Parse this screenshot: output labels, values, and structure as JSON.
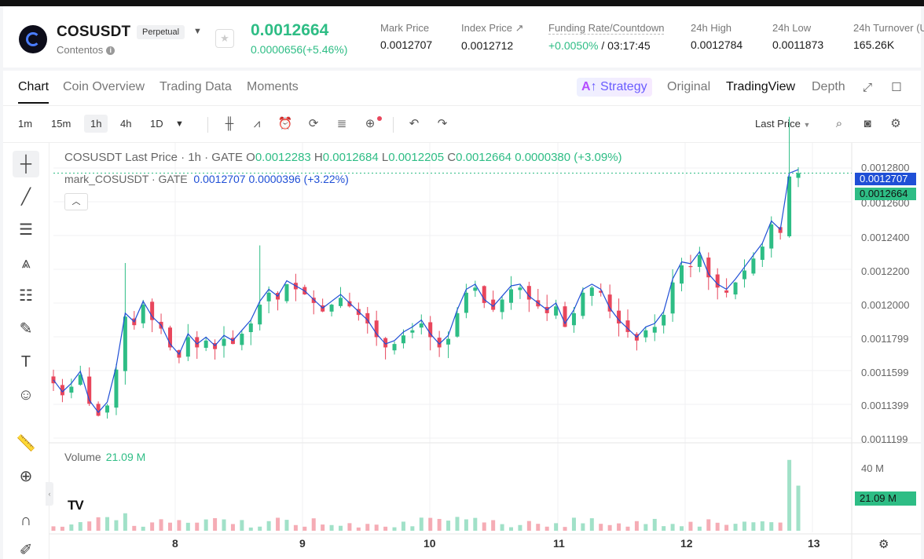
{
  "header": {
    "symbol": "COSUSDT",
    "badge": "Perpetual",
    "subtitle": "Contentos",
    "last_price": "0.0012664",
    "change": "0.0000656(+5.46%)",
    "stats": [
      {
        "label": "Mark Price",
        "value": "0.0012707"
      },
      {
        "label": "Index Price ↗",
        "value": "0.0012712"
      },
      {
        "label": "Funding Rate/Countdown",
        "value_green": "+0.0050%",
        "value": "/ 03:17:45"
      },
      {
        "label": "24h High",
        "value": "0.0012784"
      },
      {
        "label": "24h Low",
        "value": "0.0011873"
      },
      {
        "label": "24h Turnover (U",
        "value": "165.26K"
      }
    ]
  },
  "tabs": [
    "Chart",
    "Coin Overview",
    "Trading Data",
    "Moments"
  ],
  "views": {
    "strategy": "Strategy",
    "original": "Original",
    "tradingview": "TradingView",
    "depth": "Depth"
  },
  "toolbar": {
    "intervals": [
      "1m",
      "15m",
      "1h",
      "4h",
      "1D"
    ],
    "selected": "1h",
    "price_type": "Last Price"
  },
  "legend": {
    "title": "COSUSDT Last Price · 1h · GATE",
    "o_label": "O",
    "o": "0.0012283",
    "h_label": "H",
    "h": "0.0012684",
    "l_label": "L",
    "l": "0.0012205",
    "c_label": "C",
    "c": "0.0012664",
    "delta": "0.0000380 (+3.09%)",
    "mark_title": "mark_COSUSDT · GATE",
    "mark_price": "0.0012707",
    "mark_delta": "0.0000396 (+3.22%)"
  },
  "volume": {
    "label": "Volume",
    "value": "21.09 M",
    "axis_40m": "40 M",
    "tag": "21.09 M"
  },
  "price_axis": [
    "0.0012800",
    "0.0012600",
    "0.0012400",
    "0.0012200",
    "0.0012000",
    "0.0011799",
    "0.0011599",
    "0.0011399",
    "0.0011199"
  ],
  "tags": {
    "mark": "0.0012707",
    "last": "0.0012664"
  },
  "x_axis": [
    "8",
    "9",
    "10",
    "11",
    "12",
    "13"
  ],
  "colors": {
    "up": "#2ebd85",
    "down": "#e8465c",
    "mark_line": "#1f4fd6"
  },
  "chart_data": {
    "type": "candlestick",
    "y_range": [
      0.00111,
      0.00128
    ],
    "closes": [
      0.001143,
      0.001136,
      0.001141,
      0.001148,
      0.001131,
      0.001124,
      0.00113,
      0.001151,
      0.001182,
      0.001177,
      0.001189,
      0.00118,
      0.001175,
      0.001164,
      0.001158,
      0.00117,
      0.001164,
      0.001168,
      0.001163,
      0.001169,
      0.001166,
      0.001172,
      0.001178,
      0.001189,
      0.001196,
      0.001192,
      0.001201,
      0.001198,
      0.001195,
      0.00119,
      0.001185,
      0.001189,
      0.001193,
      0.001188,
      0.001183,
      0.001178,
      0.00117,
      0.001164,
      0.001166,
      0.001171,
      0.001174,
      0.001178,
      0.00117,
      0.001164,
      0.001169,
      0.001184,
      0.001196,
      0.001199,
      0.00119,
      0.001186,
      0.001192,
      0.001198,
      0.001199,
      0.001192,
      0.001188,
      0.001184,
      0.001188,
      0.001176,
      0.001184,
      0.001196,
      0.001199,
      0.001196,
      0.001185,
      0.001178,
      0.001173,
      0.001168,
      0.001174,
      0.001176,
      0.001183,
      0.001202,
      0.001212,
      0.001211,
      0.001218,
      0.001205,
      0.001199,
      0.001196,
      0.001202,
      0.001209,
      0.001216,
      0.001223,
      0.001236,
      0.001231,
      0.001264,
      0.001266
    ]
  }
}
